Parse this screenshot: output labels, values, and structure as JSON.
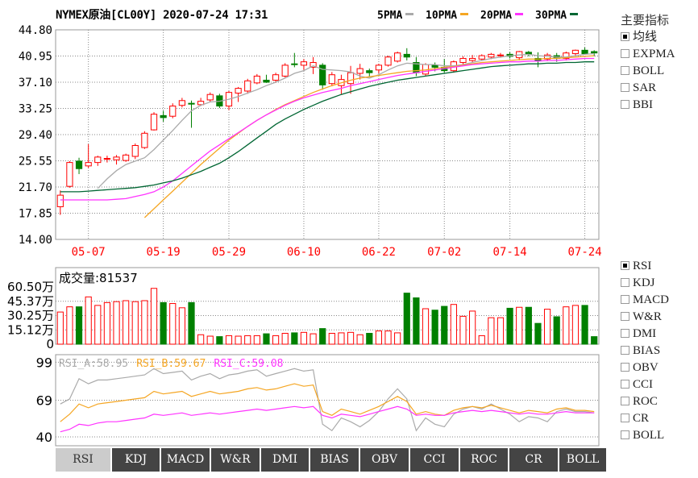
{
  "header": {
    "title": "NYMEX原油[CL00Y] 2020-07-24 17:31",
    "ma_legend": [
      {
        "label": "5PMA",
        "color": "#aaaaaa"
      },
      {
        "label": "10PMA",
        "color": "#f5a623"
      },
      {
        "label": "20PMA",
        "color": "#ff33ff"
      },
      {
        "label": "30PMA",
        "color": "#006633"
      }
    ]
  },
  "volume_label": "成交量:81537",
  "rsi_legend": [
    {
      "label": "RSI_A:58.95",
      "color": "#aaaaaa"
    },
    {
      "label": "RSI_B:59.67",
      "color": "#f5a623"
    },
    {
      "label": "RSI_C:59.08",
      "color": "#ff33ff"
    }
  ],
  "side_main": {
    "title": "主要指标",
    "items": [
      {
        "label": "均线",
        "checked": true
      },
      {
        "label": "EXPMA",
        "checked": false
      },
      {
        "label": "BOLL",
        "checked": false
      },
      {
        "label": "SAR",
        "checked": false
      },
      {
        "label": "BBI",
        "checked": false
      }
    ]
  },
  "side_sub": {
    "items": [
      {
        "label": "RSI",
        "checked": true
      },
      {
        "label": "KDJ",
        "checked": false
      },
      {
        "label": "MACD",
        "checked": false
      },
      {
        "label": "W&R",
        "checked": false
      },
      {
        "label": "DMI",
        "checked": false
      },
      {
        "label": "BIAS",
        "checked": false
      },
      {
        "label": "OBV",
        "checked": false
      },
      {
        "label": "CCI",
        "checked": false
      },
      {
        "label": "ROC",
        "checked": false
      },
      {
        "label": "CR",
        "checked": false
      },
      {
        "label": "BOLL",
        "checked": false
      }
    ]
  },
  "tabs": [
    "RSI",
    "KDJ",
    "MACD",
    "W&R",
    "DMI",
    "BIAS",
    "OBV",
    "CCI",
    "ROC",
    "CR",
    "BOLL"
  ],
  "active_tab": "RSI",
  "colors": {
    "up": "#ff0000",
    "down": "#008000",
    "grid": "#888888",
    "axis_date": "#ff0000"
  },
  "chart_data": [
    {
      "type": "candlestick",
      "y_ticks": [
        "44.80",
        "40.95",
        "37.10",
        "33.25",
        "29.40",
        "25.55",
        "21.70",
        "17.85",
        "14.00"
      ],
      "ylim": [
        14.0,
        44.8
      ],
      "x_ticks": [
        {
          "index": 3,
          "label": "05-07"
        },
        {
          "index": 11,
          "label": "05-19"
        },
        {
          "index": 18,
          "label": "05-29"
        },
        {
          "index": 26,
          "label": "06-10"
        },
        {
          "index": 34,
          "label": "06-22"
        },
        {
          "index": 41,
          "label": "07-02"
        },
        {
          "index": 48,
          "label": "07-14"
        },
        {
          "index": 56,
          "label": "07-24"
        }
      ],
      "candles": [
        {
          "o": 18.8,
          "h": 21.2,
          "l": 17.6,
          "c": 20.5
        },
        {
          "o": 21.8,
          "h": 25.5,
          "l": 21.6,
          "c": 25.3
        },
        {
          "o": 25.5,
          "h": 26.0,
          "l": 23.6,
          "c": 24.4
        },
        {
          "o": 24.8,
          "h": 28.0,
          "l": 24.5,
          "c": 25.3
        },
        {
          "o": 25.3,
          "h": 26.3,
          "l": 24.8,
          "c": 26.1
        },
        {
          "o": 25.8,
          "h": 26.3,
          "l": 25.3,
          "c": 25.9
        },
        {
          "o": 25.7,
          "h": 26.4,
          "l": 25.0,
          "c": 26.1
        },
        {
          "o": 25.6,
          "h": 26.6,
          "l": 25.4,
          "c": 26.4
        },
        {
          "o": 26.2,
          "h": 28.1,
          "l": 25.8,
          "c": 27.8
        },
        {
          "o": 27.5,
          "h": 29.9,
          "l": 27.3,
          "c": 29.6
        },
        {
          "o": 30.1,
          "h": 32.7,
          "l": 30.0,
          "c": 32.4
        },
        {
          "o": 32.2,
          "h": 32.9,
          "l": 31.3,
          "c": 31.9
        },
        {
          "o": 32.1,
          "h": 34.0,
          "l": 31.8,
          "c": 33.6
        },
        {
          "o": 33.7,
          "h": 34.8,
          "l": 33.4,
          "c": 34.4
        },
        {
          "o": 34.0,
          "h": 34.4,
          "l": 30.4,
          "c": 33.9
        },
        {
          "o": 33.8,
          "h": 34.8,
          "l": 33.6,
          "c": 34.3
        },
        {
          "o": 34.5,
          "h": 35.6,
          "l": 34.2,
          "c": 35.3
        },
        {
          "o": 35.1,
          "h": 35.4,
          "l": 33.3,
          "c": 33.6
        },
        {
          "o": 33.6,
          "h": 35.8,
          "l": 33.0,
          "c": 35.6
        },
        {
          "o": 35.5,
          "h": 36.4,
          "l": 34.2,
          "c": 36.2
        },
        {
          "o": 35.8,
          "h": 37.6,
          "l": 35.4,
          "c": 37.3
        },
        {
          "o": 37.0,
          "h": 38.3,
          "l": 36.8,
          "c": 38.0
        },
        {
          "o": 37.4,
          "h": 38.2,
          "l": 37.0,
          "c": 37.1
        },
        {
          "o": 37.4,
          "h": 38.5,
          "l": 37.0,
          "c": 38.2
        },
        {
          "o": 38.0,
          "h": 39.9,
          "l": 37.8,
          "c": 39.6
        },
        {
          "o": 39.8,
          "h": 41.4,
          "l": 39.3,
          "c": 39.7
        },
        {
          "o": 39.6,
          "h": 40.5,
          "l": 38.9,
          "c": 40.1
        },
        {
          "o": 39.3,
          "h": 40.8,
          "l": 38.3,
          "c": 40.0
        },
        {
          "o": 39.6,
          "h": 39.9,
          "l": 36.0,
          "c": 36.7
        },
        {
          "o": 36.9,
          "h": 38.6,
          "l": 36.5,
          "c": 38.2
        },
        {
          "o": 36.6,
          "h": 38.2,
          "l": 35.3,
          "c": 37.5
        },
        {
          "o": 36.9,
          "h": 39.5,
          "l": 35.4,
          "c": 38.5
        },
        {
          "o": 38.4,
          "h": 39.8,
          "l": 37.5,
          "c": 39.1
        },
        {
          "o": 38.8,
          "h": 39.1,
          "l": 37.9,
          "c": 38.5
        },
        {
          "o": 38.9,
          "h": 39.8,
          "l": 38.4,
          "c": 39.6
        },
        {
          "o": 39.6,
          "h": 41.0,
          "l": 39.4,
          "c": 40.8
        },
        {
          "o": 40.2,
          "h": 41.6,
          "l": 40.0,
          "c": 41.4
        },
        {
          "o": 41.2,
          "h": 42.1,
          "l": 40.3,
          "c": 40.8
        },
        {
          "o": 40.0,
          "h": 40.8,
          "l": 38.0,
          "c": 38.5
        },
        {
          "o": 38.3,
          "h": 39.9,
          "l": 38.0,
          "c": 39.7
        },
        {
          "o": 39.6,
          "h": 40.0,
          "l": 38.7,
          "c": 39.3
        },
        {
          "o": 39.3,
          "h": 40.5,
          "l": 38.5,
          "c": 38.8
        },
        {
          "o": 38.8,
          "h": 40.3,
          "l": 38.5,
          "c": 40.1
        },
        {
          "o": 40.0,
          "h": 40.9,
          "l": 39.7,
          "c": 40.6
        },
        {
          "o": 40.3,
          "h": 41.1,
          "l": 40.0,
          "c": 40.6
        },
        {
          "o": 40.5,
          "h": 41.2,
          "l": 40.3,
          "c": 41.0
        },
        {
          "o": 40.8,
          "h": 41.4,
          "l": 40.5,
          "c": 41.2
        },
        {
          "o": 41.0,
          "h": 41.4,
          "l": 40.7,
          "c": 41.1
        },
        {
          "o": 41.2,
          "h": 41.5,
          "l": 40.6,
          "c": 40.9
        },
        {
          "o": 40.7,
          "h": 41.7,
          "l": 40.3,
          "c": 41.6
        },
        {
          "o": 41.5,
          "h": 41.7,
          "l": 40.9,
          "c": 41.2
        },
        {
          "o": 40.6,
          "h": 41.5,
          "l": 39.3,
          "c": 40.3
        },
        {
          "o": 40.5,
          "h": 41.4,
          "l": 40.2,
          "c": 41.1
        },
        {
          "o": 41.0,
          "h": 41.4,
          "l": 40.1,
          "c": 40.6
        },
        {
          "o": 40.6,
          "h": 41.6,
          "l": 40.3,
          "c": 41.4
        },
        {
          "o": 41.3,
          "h": 41.9,
          "l": 41.0,
          "c": 41.8
        },
        {
          "o": 41.8,
          "h": 42.2,
          "l": 41.3,
          "c": 41.3
        },
        {
          "o": 41.6,
          "h": 41.8,
          "l": 40.9,
          "c": 41.4
        }
      ],
      "ma": {
        "MA5": [
          null,
          null,
          null,
          null,
          21.5,
          22.9,
          24.1,
          25.0,
          25.5,
          26.0,
          27.2,
          28.6,
          30.0,
          31.5,
          32.9,
          33.7,
          34.2,
          34.3,
          34.6,
          35.0,
          35.5,
          36.0,
          36.6,
          37.1,
          37.7,
          38.4,
          38.8,
          39.5,
          39.0,
          38.9,
          38.8,
          38.6,
          38.0,
          37.7,
          38.2,
          38.9,
          39.5,
          39.9,
          39.8,
          39.7,
          39.7,
          39.5,
          39.5,
          39.7,
          40.0,
          40.3,
          40.6,
          40.8,
          41.0,
          41.1,
          41.2,
          41.0,
          40.9,
          40.8,
          40.8,
          41.0,
          41.2,
          41.3
        ],
        "MA10": [
          null,
          null,
          null,
          null,
          null,
          null,
          null,
          null,
          null,
          17.2,
          18.5,
          19.8,
          21.1,
          22.4,
          23.7,
          25.0,
          26.2,
          27.4,
          28.6,
          29.6,
          30.6,
          31.5,
          32.3,
          33.1,
          33.8,
          34.4,
          35.0,
          35.6,
          36.1,
          36.6,
          37.0,
          37.4,
          37.7,
          37.9,
          38.1,
          38.3,
          38.5,
          38.7,
          38.8,
          38.9,
          39.1,
          39.3,
          39.4,
          39.6,
          39.8,
          40.0,
          40.1,
          40.2,
          40.3,
          40.4,
          40.5,
          40.5,
          40.6,
          40.6,
          40.7,
          40.8,
          40.9,
          41.0
        ],
        "MA20": [
          19.8,
          19.8,
          19.8,
          19.8,
          19.8,
          19.8,
          19.9,
          20.0,
          20.3,
          20.6,
          21.0,
          21.7,
          22.6,
          23.7,
          24.8,
          25.9,
          27.0,
          27.9,
          28.8,
          29.7,
          30.6,
          31.5,
          32.3,
          33.0,
          33.7,
          34.3,
          34.8,
          35.2,
          35.6,
          35.9,
          36.2,
          36.6,
          36.9,
          37.2,
          37.5,
          37.8,
          38.1,
          38.3,
          38.5,
          38.7,
          38.9,
          39.1,
          39.3,
          39.5,
          39.7,
          39.8,
          39.9,
          40.0,
          40.1,
          40.1,
          40.2,
          40.2,
          40.3,
          40.3,
          40.4,
          40.5,
          40.6,
          40.6
        ],
        "MA30": [
          21.0,
          21.0,
          21.0,
          21.1,
          21.2,
          21.3,
          21.4,
          21.5,
          21.6,
          21.8,
          22.0,
          22.3,
          22.6,
          23.0,
          23.5,
          24.0,
          24.6,
          25.2,
          26.0,
          26.9,
          27.9,
          28.9,
          29.9,
          30.9,
          31.7,
          32.4,
          33.1,
          33.7,
          34.3,
          34.8,
          35.3,
          35.7,
          36.1,
          36.5,
          36.8,
          37.1,
          37.4,
          37.6,
          37.8,
          38.0,
          38.2,
          38.4,
          38.6,
          38.8,
          39.0,
          39.2,
          39.4,
          39.5,
          39.6,
          39.7,
          39.8,
          39.8,
          39.9,
          39.9,
          40.0,
          40.0,
          40.1,
          40.1
        ]
      }
    },
    {
      "type": "bar",
      "title": "成交量:81537",
      "y_ticks": [
        "60.50万",
        "45.37万",
        "30.25万",
        "15.12万",
        "0"
      ],
      "ylim": [
        0,
        605000
      ],
      "values": [
        340000,
        395000,
        395000,
        500000,
        410000,
        440000,
        450000,
        460000,
        450000,
        460000,
        590000,
        440000,
        430000,
        385000,
        440000,
        100000,
        85000,
        80000,
        90000,
        85000,
        90000,
        90000,
        110000,
        90000,
        115000,
        120000,
        125000,
        110000,
        165000,
        115000,
        120000,
        125000,
        100000,
        115000,
        140000,
        140000,
        120000,
        540000,
        490000,
        375000,
        360000,
        400000,
        420000,
        295000,
        350000,
        90000,
        280000,
        280000,
        380000,
        390000,
        390000,
        220000,
        370000,
        290000,
        395000,
        410000,
        410000,
        80000
      ]
    },
    {
      "type": "line",
      "y_ticks": [
        "99",
        "69",
        "40"
      ],
      "ylim": [
        33,
        105
      ],
      "series": [
        {
          "name": "RSI_A:58.95",
          "values": [
            66,
            70,
            86,
            82,
            85,
            85,
            86,
            87,
            88,
            89,
            94,
            90,
            91,
            92,
            85,
            88,
            90,
            86,
            89,
            90,
            92,
            93,
            88,
            90,
            92,
            94,
            92,
            93,
            50,
            45,
            55,
            52,
            48,
            53,
            60,
            70,
            78,
            70,
            45,
            55,
            50,
            48,
            58,
            62,
            64,
            62,
            66,
            62,
            58,
            52,
            56,
            55,
            52,
            60,
            62,
            60,
            60,
            59
          ]
        },
        {
          "name": "RSI_B:59.67",
          "values": [
            52,
            58,
            66,
            63,
            66,
            67,
            68,
            69,
            70,
            71,
            76,
            74,
            75,
            76,
            72,
            74,
            76,
            74,
            75,
            76,
            78,
            79,
            77,
            78,
            80,
            82,
            80,
            81,
            60,
            57,
            62,
            60,
            58,
            61,
            64,
            68,
            72,
            68,
            58,
            60,
            58,
            57,
            61,
            63,
            64,
            63,
            65,
            63,
            61,
            59,
            61,
            60,
            59,
            62,
            63,
            61,
            61,
            60
          ]
        },
        {
          "name": "RSI_C:59.08",
          "values": [
            44,
            46,
            50,
            49,
            51,
            52,
            52,
            53,
            54,
            55,
            58,
            57,
            58,
            59,
            57,
            58,
            59,
            58,
            59,
            60,
            61,
            62,
            61,
            62,
            63,
            64,
            63,
            64,
            57,
            55,
            58,
            57,
            56,
            58,
            60,
            62,
            64,
            62,
            57,
            58,
            57,
            57,
            59,
            60,
            61,
            60,
            61,
            60,
            59,
            58,
            59,
            58,
            58,
            59,
            60,
            59,
            59,
            59
          ]
        }
      ]
    }
  ]
}
